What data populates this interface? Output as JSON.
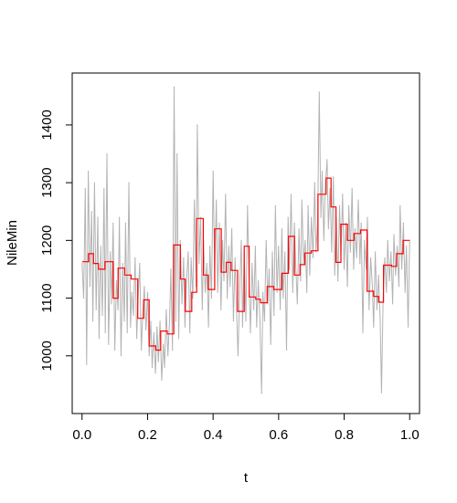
{
  "chart_data": {
    "type": "line",
    "xlabel": "t",
    "ylabel": "NileMin",
    "xlim": [
      -0.03,
      1.03
    ],
    "ylim": [
      900,
      1490
    ],
    "x_ticks": [
      0.0,
      0.2,
      0.4,
      0.6,
      0.8,
      1.0
    ],
    "x_tick_labels": [
      "0.0",
      "0.2",
      "0.4",
      "0.6",
      "0.8",
      "1.0"
    ],
    "y_ticks": [
      1000,
      1100,
      1200,
      1300,
      1400
    ],
    "y_tick_labels": [
      "1000",
      "1100",
      "1200",
      "1300",
      "1400"
    ],
    "grid": false,
    "series": [
      {
        "color": "#b3b3b3",
        "style": "raw",
        "points": [
          [
            0.0,
            1160
          ],
          [
            0.005,
            1100
          ],
          [
            0.01,
            1290
          ],
          [
            0.014,
            985
          ],
          [
            0.019,
            1320
          ],
          [
            0.024,
            1120
          ],
          [
            0.029,
            1250
          ],
          [
            0.033,
            1060
          ],
          [
            0.038,
            1300
          ],
          [
            0.043,
            1080
          ],
          [
            0.048,
            1240
          ],
          [
            0.052,
            1030
          ],
          [
            0.057,
            1190
          ],
          [
            0.062,
            1070
          ],
          [
            0.067,
            1290
          ],
          [
            0.071,
            1040
          ],
          [
            0.076,
            1350
          ],
          [
            0.081,
            1020
          ],
          [
            0.086,
            1180
          ],
          [
            0.09,
            1090
          ],
          [
            0.095,
            1230
          ],
          [
            0.1,
            1010
          ],
          [
            0.105,
            1130
          ],
          [
            0.11,
            1080
          ],
          [
            0.114,
            1240
          ],
          [
            0.119,
            1000
          ],
          [
            0.124,
            1160
          ],
          [
            0.129,
            1060
          ],
          [
            0.133,
            1230
          ],
          [
            0.138,
            1040
          ],
          [
            0.143,
            1300
          ],
          [
            0.148,
            1050
          ],
          [
            0.152,
            1110
          ],
          [
            0.157,
            1070
          ],
          [
            0.162,
            1170
          ],
          [
            0.167,
            1030
          ],
          [
            0.171,
            1100
          ],
          [
            0.176,
            1160
          ],
          [
            0.181,
            1010
          ],
          [
            0.186,
            1080
          ],
          [
            0.19,
            1120
          ],
          [
            0.195,
            1045
          ],
          [
            0.2,
            1110
          ],
          [
            0.205,
            1000
          ],
          [
            0.21,
            1060
          ],
          [
            0.214,
            980
          ],
          [
            0.219,
            1040
          ],
          [
            0.224,
            970
          ],
          [
            0.229,
            1050
          ],
          [
            0.233,
            990
          ],
          [
            0.238,
            1060
          ],
          [
            0.243,
            958
          ],
          [
            0.248,
            1020
          ],
          [
            0.252,
            980
          ],
          [
            0.257,
            1080
          ],
          [
            0.262,
            1000
          ],
          [
            0.267,
            1060
          ],
          [
            0.271,
            1150
          ],
          [
            0.276,
            1010
          ],
          [
            0.281,
            1466
          ],
          [
            0.286,
            1060
          ],
          [
            0.29,
            1350
          ],
          [
            0.295,
            1030
          ],
          [
            0.3,
            1200
          ],
          [
            0.305,
            1090
          ],
          [
            0.31,
            1170
          ],
          [
            0.314,
            1050
          ],
          [
            0.319,
            1130
          ],
          [
            0.324,
            1180
          ],
          [
            0.329,
            1040
          ],
          [
            0.333,
            1170
          ],
          [
            0.338,
            1100
          ],
          [
            0.343,
            1270
          ],
          [
            0.348,
            1120
          ],
          [
            0.352,
            1400
          ],
          [
            0.357,
            1160
          ],
          [
            0.362,
            1240
          ],
          [
            0.367,
            1080
          ],
          [
            0.371,
            1200
          ],
          [
            0.376,
            1110
          ],
          [
            0.381,
            1160
          ],
          [
            0.386,
            1050
          ],
          [
            0.39,
            1190
          ],
          [
            0.395,
            1100
          ],
          [
            0.4,
            1320
          ],
          [
            0.405,
            1140
          ],
          [
            0.41,
            1270
          ],
          [
            0.414,
            1110
          ],
          [
            0.419,
            1230
          ],
          [
            0.424,
            1080
          ],
          [
            0.429,
            1200
          ],
          [
            0.433,
            1130
          ],
          [
            0.438,
            1280
          ],
          [
            0.443,
            1100
          ],
          [
            0.448,
            1190
          ],
          [
            0.452,
            1120
          ],
          [
            0.457,
            1220
          ],
          [
            0.462,
            1060
          ],
          [
            0.467,
            1170
          ],
          [
            0.471,
            1090
          ],
          [
            0.476,
            1000
          ],
          [
            0.481,
            1110
          ],
          [
            0.486,
            1200
          ],
          [
            0.49,
            1050
          ],
          [
            0.495,
            1180
          ],
          [
            0.5,
            1060
          ],
          [
            0.505,
            1260
          ],
          [
            0.51,
            1120
          ],
          [
            0.514,
            1040
          ],
          [
            0.519,
            1160
          ],
          [
            0.524,
            1080
          ],
          [
            0.529,
            1190
          ],
          [
            0.533,
            1050
          ],
          [
            0.538,
            1130
          ],
          [
            0.543,
            1060
          ],
          [
            0.548,
            935
          ],
          [
            0.552,
            1110
          ],
          [
            0.557,
            1060
          ],
          [
            0.562,
            1200
          ],
          [
            0.567,
            1090
          ],
          [
            0.571,
            1150
          ],
          [
            0.576,
            1020
          ],
          [
            0.581,
            1180
          ],
          [
            0.586,
            1070
          ],
          [
            0.59,
            1260
          ],
          [
            0.595,
            1110
          ],
          [
            0.6,
            1190
          ],
          [
            0.605,
            1080
          ],
          [
            0.61,
            1220
          ],
          [
            0.614,
            1100
          ],
          [
            0.619,
            1180
          ],
          [
            0.624,
            1010
          ],
          [
            0.629,
            1240
          ],
          [
            0.633,
            1150
          ],
          [
            0.638,
            1280
          ],
          [
            0.643,
            1110
          ],
          [
            0.648,
            1230
          ],
          [
            0.652,
            1160
          ],
          [
            0.657,
            1090
          ],
          [
            0.662,
            1220
          ],
          [
            0.667,
            1130
          ],
          [
            0.671,
            1270
          ],
          [
            0.676,
            1160
          ],
          [
            0.681,
            1200
          ],
          [
            0.686,
            1110
          ],
          [
            0.69,
            1260
          ],
          [
            0.695,
            1140
          ],
          [
            0.7,
            1240
          ],
          [
            0.705,
            1170
          ],
          [
            0.71,
            1300
          ],
          [
            0.714,
            1180
          ],
          [
            0.719,
            1230
          ],
          [
            0.724,
            1457
          ],
          [
            0.729,
            1240
          ],
          [
            0.733,
            1320
          ],
          [
            0.738,
            1200
          ],
          [
            0.743,
            1300
          ],
          [
            0.748,
            1340
          ],
          [
            0.752,
            1220
          ],
          [
            0.757,
            1290
          ],
          [
            0.762,
            1180
          ],
          [
            0.767,
            1310
          ],
          [
            0.771,
            1140
          ],
          [
            0.776,
            1240
          ],
          [
            0.781,
            1130
          ],
          [
            0.786,
            1260
          ],
          [
            0.79,
            1170
          ],
          [
            0.795,
            1280
          ],
          [
            0.8,
            1150
          ],
          [
            0.805,
            1230
          ],
          [
            0.81,
            1120
          ],
          [
            0.814,
            1260
          ],
          [
            0.819,
            1180
          ],
          [
            0.824,
            1290
          ],
          [
            0.829,
            1150
          ],
          [
            0.833,
            1220
          ],
          [
            0.838,
            1170
          ],
          [
            0.843,
            1270
          ],
          [
            0.848,
            1160
          ],
          [
            0.852,
            1230
          ],
          [
            0.857,
            1040
          ],
          [
            0.862,
            1200
          ],
          [
            0.867,
            1150
          ],
          [
            0.871,
            1240
          ],
          [
            0.876,
            1080
          ],
          [
            0.881,
            1170
          ],
          [
            0.886,
            1120
          ],
          [
            0.89,
            1050
          ],
          [
            0.895,
            1180
          ],
          [
            0.9,
            1080
          ],
          [
            0.905,
            1140
          ],
          [
            0.91,
            1060
          ],
          [
            0.914,
            936
          ],
          [
            0.919,
            1100
          ],
          [
            0.924,
            1170
          ],
          [
            0.929,
            1110
          ],
          [
            0.933,
            1200
          ],
          [
            0.938,
            1130
          ],
          [
            0.943,
            1180
          ],
          [
            0.948,
            1090
          ],
          [
            0.952,
            1210
          ],
          [
            0.957,
            1140
          ],
          [
            0.962,
            1190
          ],
          [
            0.967,
            1120
          ],
          [
            0.971,
            1260
          ],
          [
            0.976,
            1150
          ],
          [
            0.981,
            1230
          ],
          [
            0.986,
            1110
          ],
          [
            0.99,
            1190
          ],
          [
            0.995,
            1050
          ],
          [
            1.0,
            1200
          ]
        ]
      },
      {
        "color": "#ff0000",
        "style": "step",
        "segments": [
          [
            0.0,
            0.02,
            1163
          ],
          [
            0.02,
            0.035,
            1177
          ],
          [
            0.035,
            0.05,
            1160
          ],
          [
            0.05,
            0.07,
            1150
          ],
          [
            0.07,
            0.095,
            1163
          ],
          [
            0.095,
            0.11,
            1100
          ],
          [
            0.11,
            0.13,
            1152
          ],
          [
            0.13,
            0.15,
            1140
          ],
          [
            0.15,
            0.17,
            1133
          ],
          [
            0.17,
            0.188,
            1065
          ],
          [
            0.188,
            0.205,
            1097
          ],
          [
            0.205,
            0.225,
            1017
          ],
          [
            0.225,
            0.24,
            1010
          ],
          [
            0.24,
            0.26,
            1043
          ],
          [
            0.26,
            0.28,
            1038
          ],
          [
            0.28,
            0.3,
            1192
          ],
          [
            0.3,
            0.315,
            1133
          ],
          [
            0.315,
            0.335,
            1077
          ],
          [
            0.335,
            0.35,
            1110
          ],
          [
            0.35,
            0.37,
            1238
          ],
          [
            0.37,
            0.385,
            1140
          ],
          [
            0.385,
            0.405,
            1115
          ],
          [
            0.405,
            0.425,
            1220
          ],
          [
            0.425,
            0.44,
            1145
          ],
          [
            0.44,
            0.455,
            1162
          ],
          [
            0.455,
            0.475,
            1148
          ],
          [
            0.475,
            0.495,
            1077
          ],
          [
            0.495,
            0.51,
            1190
          ],
          [
            0.51,
            0.53,
            1102
          ],
          [
            0.53,
            0.545,
            1098
          ],
          [
            0.545,
            0.565,
            1092
          ],
          [
            0.565,
            0.585,
            1120
          ],
          [
            0.585,
            0.61,
            1115
          ],
          [
            0.61,
            0.63,
            1143
          ],
          [
            0.63,
            0.648,
            1207
          ],
          [
            0.648,
            0.665,
            1140
          ],
          [
            0.665,
            0.68,
            1158
          ],
          [
            0.68,
            0.7,
            1178
          ],
          [
            0.7,
            0.72,
            1182
          ],
          [
            0.72,
            0.745,
            1280
          ],
          [
            0.745,
            0.76,
            1308
          ],
          [
            0.76,
            0.775,
            1258
          ],
          [
            0.775,
            0.79,
            1162
          ],
          [
            0.79,
            0.81,
            1228
          ],
          [
            0.81,
            0.83,
            1200
          ],
          [
            0.83,
            0.85,
            1212
          ],
          [
            0.85,
            0.87,
            1218
          ],
          [
            0.87,
            0.89,
            1112
          ],
          [
            0.89,
            0.905,
            1103
          ],
          [
            0.905,
            0.92,
            1093
          ],
          [
            0.92,
            0.945,
            1157
          ],
          [
            0.945,
            0.96,
            1155
          ],
          [
            0.96,
            0.98,
            1177
          ],
          [
            0.98,
            1.0,
            1200
          ]
        ]
      }
    ]
  }
}
